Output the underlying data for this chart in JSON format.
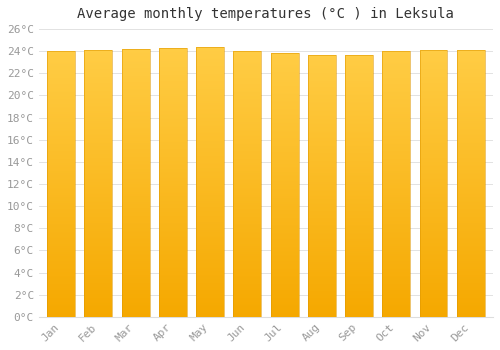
{
  "title": "Average monthly temperatures (°C ) in Leksula",
  "months": [
    "Jan",
    "Feb",
    "Mar",
    "Apr",
    "May",
    "Jun",
    "Jul",
    "Aug",
    "Sep",
    "Oct",
    "Nov",
    "Dec"
  ],
  "values": [
    24.0,
    24.1,
    24.2,
    24.3,
    24.4,
    24.0,
    23.8,
    23.7,
    23.7,
    24.0,
    24.1,
    24.1
  ],
  "bar_color_top": "#FFCC44",
  "bar_color_bottom": "#F5A800",
  "bar_edge_color": "#E09800",
  "ylim": [
    0,
    26
  ],
  "ytick_step": 2,
  "background_color": "#FFFFFF",
  "plot_bg_color": "#FFFFFF",
  "grid_color": "#DDDDDD",
  "title_fontsize": 10,
  "tick_fontsize": 8,
  "tick_label_color": "#999999",
  "title_color": "#333333",
  "font_family": "monospace",
  "bar_width": 0.75,
  "figsize": [
    5.0,
    3.5
  ],
  "dpi": 100
}
